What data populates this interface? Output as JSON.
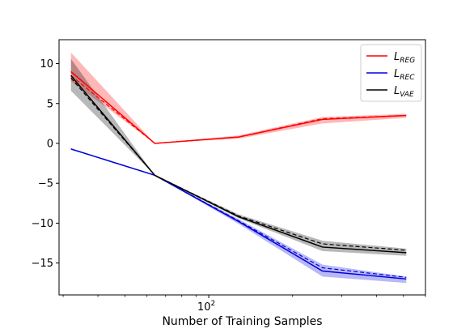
{
  "chart_data": {
    "type": "line",
    "title": "",
    "xlabel": "Number of Training Samples",
    "ylabel": "",
    "xscale": "log",
    "xlim": [
      29,
      600
    ],
    "ylim": [
      -19,
      13
    ],
    "x": [
      32,
      64,
      128,
      256,
      512
    ],
    "xticks": [
      {
        "value": 100,
        "base": "10",
        "exp": "2"
      }
    ],
    "yticks": [
      10,
      5,
      0,
      -5,
      -10,
      -15
    ],
    "legend": {
      "location": "top-right",
      "entries": [
        {
          "main": "L",
          "sub": "REG"
        },
        {
          "main": "L",
          "sub": "REC"
        },
        {
          "main": "L",
          "sub": "VAE"
        }
      ]
    },
    "series": [
      {
        "legend_index": 0,
        "color": "#ff0000",
        "solid": [
          9.0,
          0.0,
          0.8,
          3.0,
          3.5
        ],
        "dashed": [
          8.5,
          0.0,
          0.8,
          3.1,
          3.5
        ],
        "lower": [
          7.8,
          0.0,
          0.6,
          2.5,
          3.2
        ],
        "upper": [
          11.4,
          0.0,
          1.0,
          3.3,
          3.7
        ]
      },
      {
        "legend_index": 1,
        "color": "#0000dd",
        "solid": [
          -0.7,
          -4.0,
          -9.8,
          -16.0,
          -17.0
        ],
        "dashed": [
          -0.7,
          -4.0,
          -9.7,
          -15.6,
          -16.8
        ],
        "lower": [
          -0.7,
          -4.0,
          -10.1,
          -16.7,
          -17.5
        ],
        "upper": [
          -0.7,
          -4.0,
          -9.5,
          -15.2,
          -16.7
        ]
      },
      {
        "legend_index": 2,
        "color": "#000000",
        "solid": [
          8.5,
          -4.0,
          -9.2,
          -13.0,
          -13.7
        ],
        "dashed": [
          8.2,
          -4.0,
          -9.1,
          -12.6,
          -13.4
        ],
        "lower": [
          6.6,
          -4.0,
          -9.4,
          -13.5,
          -14.1
        ],
        "upper": [
          10.6,
          -4.0,
          -8.9,
          -12.2,
          -13.2
        ]
      }
    ]
  }
}
